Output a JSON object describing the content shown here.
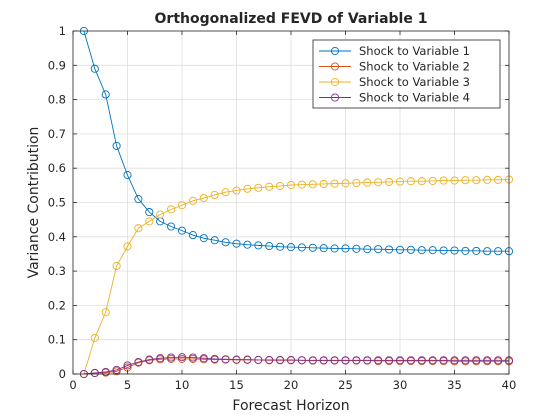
{
  "chart_data": {
    "type": "line",
    "title": "Orthogonalized FEVD of Variable 1",
    "xlabel": "Forecast Horizon",
    "ylabel": "Variance Contribution",
    "xlim": [
      0,
      40
    ],
    "ylim": [
      0,
      1
    ],
    "xticks": [
      0,
      5,
      10,
      15,
      20,
      25,
      30,
      35,
      40
    ],
    "yticks": [
      0,
      0.1,
      0.2,
      0.3,
      0.4,
      0.5,
      0.6,
      0.7,
      0.8,
      0.9,
      1
    ],
    "grid": true,
    "legend_position": "top-right",
    "marker": "circle",
    "x": [
      1,
      2,
      3,
      4,
      5,
      6,
      7,
      8,
      9,
      10,
      11,
      12,
      13,
      14,
      15,
      16,
      17,
      18,
      19,
      20,
      21,
      22,
      23,
      24,
      25,
      26,
      27,
      28,
      29,
      30,
      31,
      32,
      33,
      34,
      35,
      36,
      37,
      38,
      39,
      40
    ],
    "series": [
      {
        "name": "Shock to Variable 1",
        "color": "#0072BD",
        "values": [
          1.0,
          0.89,
          0.815,
          0.665,
          0.58,
          0.51,
          0.472,
          0.445,
          0.43,
          0.418,
          0.405,
          0.396,
          0.39,
          0.384,
          0.38,
          0.377,
          0.375,
          0.373,
          0.371,
          0.37,
          0.369,
          0.368,
          0.367,
          0.366,
          0.366,
          0.365,
          0.364,
          0.364,
          0.363,
          0.362,
          0.362,
          0.361,
          0.361,
          0.36,
          0.36,
          0.359,
          0.359,
          0.358,
          0.358,
          0.358
        ]
      },
      {
        "name": "Shock to Variable 2",
        "color": "#D95319",
        "values": [
          0.0,
          0.003,
          0.004,
          0.008,
          0.019,
          0.033,
          0.04,
          0.043,
          0.044,
          0.044,
          0.044,
          0.043,
          0.042,
          0.042,
          0.041,
          0.041,
          0.041,
          0.04,
          0.04,
          0.04,
          0.04,
          0.039,
          0.039,
          0.039,
          0.039,
          0.039,
          0.039,
          0.038,
          0.038,
          0.038,
          0.038,
          0.038,
          0.038,
          0.038,
          0.037,
          0.037,
          0.037,
          0.037,
          0.037,
          0.037
        ]
      },
      {
        "name": "Shock to Variable 3",
        "color": "#EDB120",
        "values": [
          0.0,
          0.105,
          0.18,
          0.315,
          0.372,
          0.425,
          0.445,
          0.465,
          0.48,
          0.492,
          0.505,
          0.513,
          0.522,
          0.53,
          0.535,
          0.54,
          0.543,
          0.546,
          0.548,
          0.551,
          0.552,
          0.553,
          0.554,
          0.555,
          0.556,
          0.557,
          0.558,
          0.559,
          0.56,
          0.561,
          0.562,
          0.562,
          0.563,
          0.564,
          0.564,
          0.565,
          0.565,
          0.566,
          0.566,
          0.567
        ]
      },
      {
        "name": "Shock to Variable 4",
        "color": "#7E2F8E",
        "values": [
          0.0,
          0.003,
          0.006,
          0.012,
          0.025,
          0.035,
          0.042,
          0.046,
          0.048,
          0.049,
          0.048,
          0.046,
          0.044,
          0.043,
          0.042,
          0.042,
          0.041,
          0.041,
          0.041,
          0.041,
          0.04,
          0.04,
          0.04,
          0.04,
          0.04,
          0.04,
          0.04,
          0.04,
          0.04,
          0.04,
          0.04,
          0.04,
          0.04,
          0.04,
          0.04,
          0.04,
          0.04,
          0.04,
          0.04,
          0.04
        ]
      }
    ]
  }
}
